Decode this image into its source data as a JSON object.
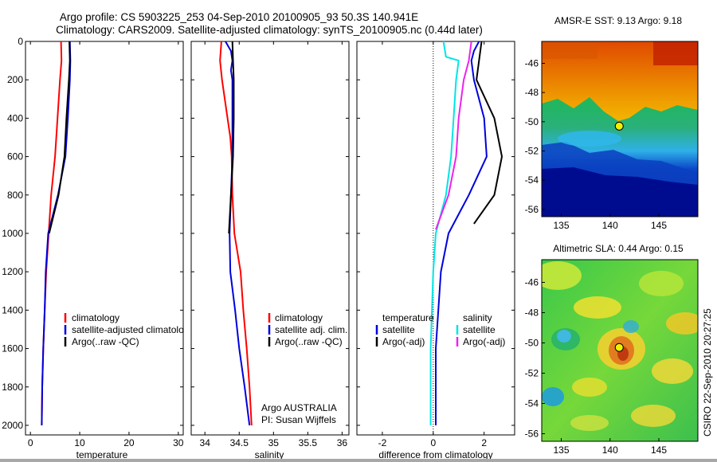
{
  "figure": {
    "title_line1": "Argo profile: CS 5903225_253 04-Sep-2010 20100905_93 50.3S 140.941E",
    "title_line2": "Climatology: CARS2009. Satellite-adjusted climatology: synTS_20100905.nc (0.44d later)",
    "credit": "Argo AUSTRALIA",
    "pi": "PI: Susan Wijffels",
    "stamp": "CSIRO 22-Sep-2010 20:27:25"
  },
  "colors": {
    "red": "#ff0000",
    "blue": "#0000dd",
    "black": "#000000",
    "cyan": "#00e5e5",
    "magenta": "#ee22ee"
  },
  "chart_data": [
    {
      "type": "line",
      "xlabel": "temperature",
      "ylabel": "",
      "xlim": [
        -1,
        31
      ],
      "ylim": [
        0,
        2050
      ],
      "y_reversed": true,
      "x_ticks": [
        "0",
        "10",
        "20",
        "30"
      ],
      "y_ticks": [
        "0",
        "200",
        "400",
        "600",
        "800",
        "1000",
        "1200",
        "1400",
        "1600",
        "1800",
        "2000"
      ],
      "legend": [
        "climatology",
        "satellite-adjusted climatology",
        "Argo(..raw -QC)"
      ],
      "series": [
        {
          "name": "climatology",
          "color": "red",
          "points": [
            [
              6.2,
              0
            ],
            [
              6.3,
              100
            ],
            [
              6.0,
              200
            ],
            [
              5.5,
              400
            ],
            [
              5.0,
              600
            ],
            [
              4.2,
              800
            ],
            [
              3.7,
              1000
            ],
            [
              3.2,
              1200
            ],
            [
              2.9,
              1400
            ],
            [
              2.6,
              1600
            ],
            [
              2.4,
              1800
            ],
            [
              2.3,
              2000
            ]
          ]
        },
        {
          "name": "satellite-adjusted climatology",
          "color": "blue",
          "points": [
            [
              8.0,
              0
            ],
            [
              8.1,
              100
            ],
            [
              8.0,
              200
            ],
            [
              7.6,
              400
            ],
            [
              7.1,
              600
            ],
            [
              5.6,
              800
            ],
            [
              3.6,
              1000
            ],
            [
              3.1,
              1200
            ],
            [
              2.9,
              1400
            ],
            [
              2.6,
              1600
            ],
            [
              2.4,
              1800
            ],
            [
              2.3,
              2000
            ]
          ]
        },
        {
          "name": "Argo(..raw -QC)",
          "color": "black",
          "points": [
            [
              7.9,
              0
            ],
            [
              8.0,
              100
            ],
            [
              7.8,
              200
            ],
            [
              7.3,
              400
            ],
            [
              6.9,
              600
            ],
            [
              5.7,
              800
            ],
            [
              3.8,
              1000
            ]
          ]
        }
      ]
    },
    {
      "type": "line",
      "xlabel": "salinity",
      "xlim": [
        33.8,
        36.1
      ],
      "ylim": [
        0,
        2050
      ],
      "y_reversed": true,
      "x_ticks": [
        "34",
        "34.5",
        "35",
        "35.5",
        "36"
      ],
      "legend": [
        "climatology",
        "satellite adj. clim.",
        "Argo(..raw -QC)"
      ],
      "series": [
        {
          "name": "climatology",
          "color": "red",
          "points": [
            [
              34.24,
              0
            ],
            [
              34.22,
              100
            ],
            [
              34.25,
              200
            ],
            [
              34.33,
              400
            ],
            [
              34.37,
              500
            ],
            [
              34.39,
              600
            ],
            [
              34.4,
              800
            ],
            [
              34.43,
              1000
            ],
            [
              34.52,
              1200
            ],
            [
              34.56,
              1400
            ],
            [
              34.61,
              1600
            ],
            [
              34.65,
              1800
            ],
            [
              34.68,
              2000
            ]
          ]
        },
        {
          "name": "satellite adj. clim.",
          "color": "blue",
          "points": [
            [
              34.3,
              0
            ],
            [
              34.38,
              50
            ],
            [
              34.4,
              100
            ],
            [
              34.38,
              150
            ],
            [
              34.4,
              200
            ],
            [
              34.4,
              400
            ],
            [
              34.4,
              600
            ],
            [
              34.38,
              800
            ],
            [
              34.36,
              1000
            ],
            [
              34.37,
              1200
            ],
            [
              34.44,
              1400
            ],
            [
              34.5,
              1600
            ],
            [
              34.58,
              1800
            ],
            [
              34.65,
              2000
            ]
          ]
        },
        {
          "name": "Argo(..raw -QC)",
          "color": "black",
          "points": [
            [
              34.4,
              0
            ],
            [
              34.41,
              100
            ],
            [
              34.42,
              200
            ],
            [
              34.42,
              400
            ],
            [
              34.41,
              600
            ],
            [
              34.38,
              800
            ],
            [
              34.35,
              1000
            ]
          ]
        }
      ]
    },
    {
      "type": "line",
      "xlabel": "difference from climatology",
      "xlim": [
        -3,
        3.2
      ],
      "ylim": [
        0,
        2050
      ],
      "y_reversed": true,
      "x_ticks": [
        "-2",
        "0",
        "2"
      ],
      "legend_left_title": "temperature",
      "legend_left": [
        "satellite",
        "Argo(-adj)"
      ],
      "legend_right_title": "salinity",
      "legend_right": [
        "satellite",
        "Argo(-adj)"
      ],
      "series": [
        {
          "name": "temperature satellite",
          "color": "blue",
          "points": [
            [
              1.8,
              0
            ],
            [
              1.6,
              50
            ],
            [
              1.5,
              100
            ],
            [
              1.6,
              200
            ],
            [
              2.0,
              400
            ],
            [
              2.1,
              600
            ],
            [
              1.4,
              800
            ],
            [
              0.6,
              1000
            ],
            [
              0.3,
              1200
            ],
            [
              0.2,
              1400
            ],
            [
              0.1,
              1600
            ],
            [
              0.1,
              1800
            ],
            [
              0.1,
              2000
            ]
          ]
        },
        {
          "name": "temperature Argo(-adj)",
          "color": "black",
          "points": [
            [
              1.9,
              0
            ],
            [
              1.8,
              100
            ],
            [
              1.7,
              200
            ],
            [
              2.4,
              400
            ],
            [
              2.7,
              600
            ],
            [
              2.4,
              800
            ],
            [
              1.6,
              950
            ]
          ]
        },
        {
          "name": "salinity satellite",
          "color": "cyan",
          "points": [
            [
              0.4,
              0
            ],
            [
              0.5,
              80
            ],
            [
              1.0,
              100
            ],
            [
              0.9,
              200
            ],
            [
              0.8,
              400
            ],
            [
              0.7,
              600
            ],
            [
              0.5,
              800
            ],
            [
              0.1,
              1000
            ],
            [
              0.0,
              1200
            ],
            [
              -0.1,
              1600
            ],
            [
              -0.1,
              2000
            ]
          ]
        },
        {
          "name": "salinity Argo(-adj)",
          "color": "magenta",
          "points": [
            [
              1.5,
              0
            ],
            [
              1.4,
              100
            ],
            [
              1.2,
              200
            ],
            [
              1.0,
              400
            ],
            [
              0.9,
              600
            ],
            [
              0.6,
              800
            ],
            [
              0.1,
              980
            ]
          ]
        }
      ]
    },
    {
      "type": "heatmap",
      "title": "AMSR-E SST: 9.13 Argo: 9.18",
      "x_ticks": [
        "135",
        "140",
        "145"
      ],
      "y_ticks": [
        "-46",
        "-48",
        "-50",
        "-52",
        "-54",
        "-56"
      ],
      "xlim": [
        133,
        149
      ],
      "ylim": [
        -56.5,
        -44.5
      ],
      "marker": {
        "lon": 140.94,
        "lat": -50.3
      }
    },
    {
      "type": "heatmap",
      "title": "Altimetric SLA: 0.44 Argo: 0.15",
      "x_ticks": [
        "135",
        "140",
        "145"
      ],
      "y_ticks": [
        "-46",
        "-48",
        "-50",
        "-52",
        "-54",
        "-56"
      ],
      "xlim": [
        133,
        149
      ],
      "ylim": [
        -56.5,
        -44.5
      ],
      "marker": {
        "lon": 140.94,
        "lat": -50.3
      }
    }
  ]
}
